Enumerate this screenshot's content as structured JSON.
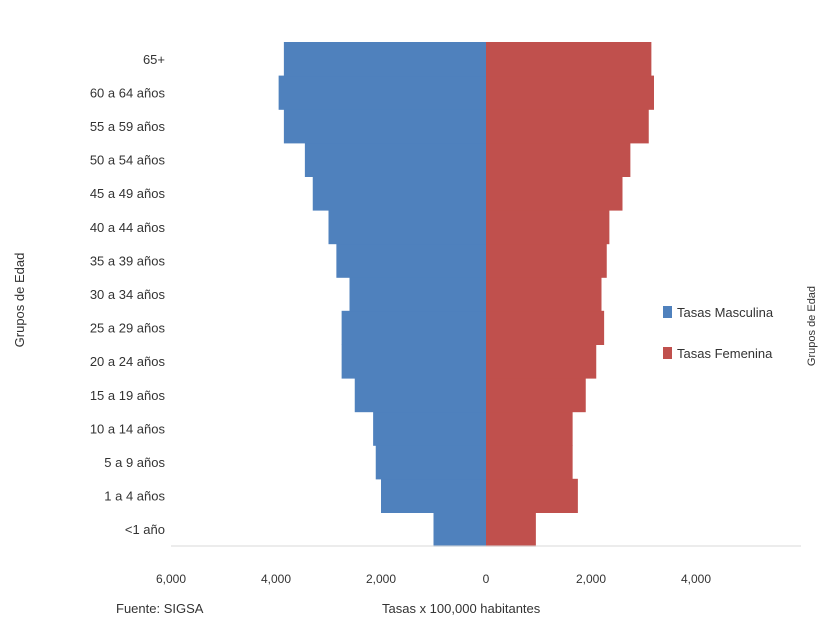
{
  "chart_data": {
    "type": "bar",
    "orientation": "horizontal",
    "stacked_pyramid": true,
    "categories": [
      "<1 año",
      "1 a 4 años",
      "5 a 9 años",
      "10 a 14 años",
      "15 a 19 años",
      "20 a 24 años",
      "25 a 29 años",
      "30 a 34 años",
      "35 a 39 años",
      "40 a 44 años",
      "45 a 49 años",
      "50 a 54 años",
      "55 a 59 años",
      "60 a 64 años",
      "65+"
    ],
    "series": [
      {
        "name": "Tasas Masculina",
        "color": "#4F81BD",
        "values": [
          -1000,
          -2000,
          -2100,
          -2150,
          -2500,
          -2750,
          -2750,
          -2600,
          -2850,
          -3000,
          -3300,
          -3450,
          -3850,
          -3950,
          -3850
        ]
      },
      {
        "name": "Tasas Femenina",
        "color": "#C0504D",
        "values": [
          950,
          1750,
          1650,
          1650,
          1900,
          2100,
          2250,
          2200,
          2300,
          2350,
          2600,
          2750,
          3100,
          3200,
          3150
        ]
      }
    ],
    "xlim": [
      -6000,
      6000
    ],
    "xticks": [
      -6000,
      -4000,
      -2000,
      0,
      2000,
      4000
    ],
    "xtick_labels": [
      "6,000",
      "4,000",
      "2,000",
      "0",
      "2,000",
      "4,000"
    ],
    "xlabel": "Tasas x 100,000 habitantes",
    "ylabel": "Grupos de Edad",
    "legend_position": "right",
    "source": "Fuente: SIGSA",
    "secondary_ylabel": "Grupos de Edad"
  }
}
